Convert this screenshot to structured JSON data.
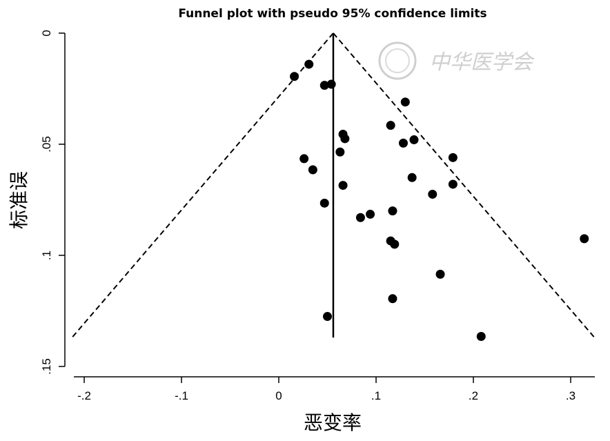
{
  "chart_data": {
    "type": "scatter",
    "title": "Funnel plot with pseudo 95% confidence limits",
    "xlabel": "恶变率",
    "ylabel": "标准误",
    "xlim": [
      -0.225,
      0.33
    ],
    "ylim": [
      0,
      0.15
    ],
    "y_inverted": true,
    "x_ticks": [
      {
        "value": -0.2,
        "label": "-.2"
      },
      {
        "value": -0.1,
        "label": "-.1"
      },
      {
        "value": 0,
        "label": "0"
      },
      {
        "value": 0.1,
        "label": ".1"
      },
      {
        "value": 0.2,
        "label": ".2"
      },
      {
        "value": 0.3,
        "label": ".3"
      }
    ],
    "y_ticks": [
      {
        "value": 0,
        "label": "0"
      },
      {
        "value": 0.05,
        "label": ".05"
      },
      {
        "value": 0.1,
        "label": ".1"
      },
      {
        "value": 0.15,
        "label": ".15"
      }
    ],
    "pooled_estimate": 0.056,
    "pseudo_ci_max_se": 0.137,
    "grid": false,
    "points": [
      {
        "x": 0.016,
        "y": 0.0195
      },
      {
        "x": 0.031,
        "y": 0.014
      },
      {
        "x": 0.047,
        "y": 0.0235
      },
      {
        "x": 0.054,
        "y": 0.023
      },
      {
        "x": 0.066,
        "y": 0.0455
      },
      {
        "x": 0.068,
        "y": 0.0475
      },
      {
        "x": 0.063,
        "y": 0.0535
      },
      {
        "x": 0.026,
        "y": 0.0565
      },
      {
        "x": 0.035,
        "y": 0.0615
      },
      {
        "x": 0.066,
        "y": 0.0685
      },
      {
        "x": 0.047,
        "y": 0.0765
      },
      {
        "x": 0.084,
        "y": 0.083
      },
      {
        "x": 0.094,
        "y": 0.0815
      },
      {
        "x": 0.115,
        "y": 0.0935
      },
      {
        "x": 0.119,
        "y": 0.095
      },
      {
        "x": 0.117,
        "y": 0.08
      },
      {
        "x": 0.115,
        "y": 0.0415
      },
      {
        "x": 0.13,
        "y": 0.031
      },
      {
        "x": 0.128,
        "y": 0.0495
      },
      {
        "x": 0.139,
        "y": 0.048
      },
      {
        "x": 0.137,
        "y": 0.065
      },
      {
        "x": 0.158,
        "y": 0.0725
      },
      {
        "x": 0.179,
        "y": 0.056
      },
      {
        "x": 0.179,
        "y": 0.068
      },
      {
        "x": 0.166,
        "y": 0.1085
      },
      {
        "x": 0.117,
        "y": 0.1195
      },
      {
        "x": 0.05,
        "y": 0.1275
      },
      {
        "x": 0.208,
        "y": 0.1365
      },
      {
        "x": 0.314,
        "y": 0.0925
      }
    ]
  },
  "watermark": {
    "text": "中华医学会"
  }
}
